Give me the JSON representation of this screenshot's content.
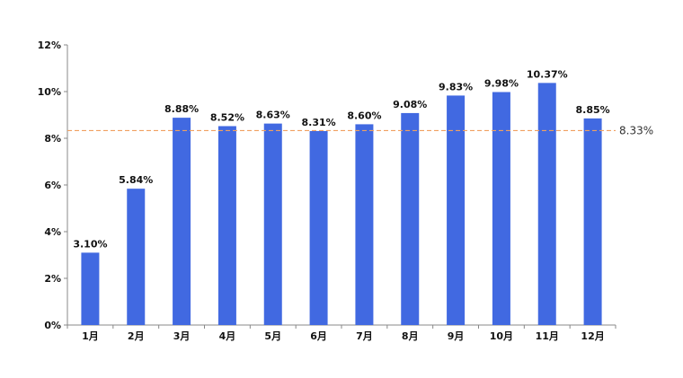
{
  "chart_data": {
    "type": "bar",
    "title": "",
    "xlabel": "",
    "ylabel": "",
    "categories": [
      "1月",
      "2月",
      "3月",
      "4月",
      "5月",
      "6月",
      "7月",
      "8月",
      "9月",
      "10月",
      "11月",
      "12月"
    ],
    "values": [
      3.1,
      5.84,
      8.88,
      8.52,
      8.63,
      8.31,
      8.6,
      9.08,
      9.83,
      9.98,
      10.37,
      8.85
    ],
    "value_labels": [
      "3.10%",
      "5.84%",
      "8.88%",
      "8.52%",
      "8.63%",
      "8.31%",
      "8.60%",
      "9.08%",
      "9.83%",
      "9.98%",
      "10.37%",
      "8.85%"
    ],
    "ylim": [
      0,
      12
    ],
    "y_ticks": [
      0,
      2,
      4,
      6,
      8,
      10,
      12
    ],
    "y_tick_labels": [
      "0%",
      "2%",
      "4%",
      "6%",
      "8%",
      "10%",
      "12%"
    ],
    "reference_line": {
      "value": 8.33,
      "label": "8.33%",
      "style": "dashed",
      "color": "#F0A060"
    },
    "bar_color": "#4169E1",
    "axis_color": "#888888",
    "grid": false
  }
}
